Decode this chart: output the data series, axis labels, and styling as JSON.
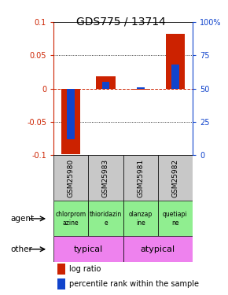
{
  "title": "GDS775 / 13714",
  "samples": [
    "GSM25980",
    "GSM25983",
    "GSM25981",
    "GSM25982"
  ],
  "log_ratio": [
    -0.098,
    0.018,
    -0.002,
    0.082
  ],
  "percentile_rank": [
    12,
    55,
    51,
    68
  ],
  "agents": [
    "chlorprom\nazine",
    "thioridazin\ne",
    "olanzap\nine",
    "quetiapi\nne"
  ],
  "agent_colors": [
    "#90ee90",
    "#90ee90",
    "#90ee90",
    "#90ee90"
  ],
  "other_groups": [
    {
      "label": "typical",
      "start": 0,
      "end": 2,
      "color": "#ee82ee"
    },
    {
      "label": "atypical",
      "start": 2,
      "end": 4,
      "color": "#ee82ee"
    }
  ],
  "ylim": [
    -0.1,
    0.1
  ],
  "yticks_left": [
    -0.1,
    -0.05,
    0,
    0.05,
    0.1
  ],
  "yticks_right": [
    0,
    25,
    50,
    75,
    100
  ],
  "bar_color_red": "#cc2200",
  "bar_color_blue": "#1144cc",
  "grid_color": "#000000",
  "zero_line_color": "#cc2200",
  "sample_bg_color": "#c8c8c8",
  "title_fontsize": 10,
  "agent_bg": "#90ee90"
}
